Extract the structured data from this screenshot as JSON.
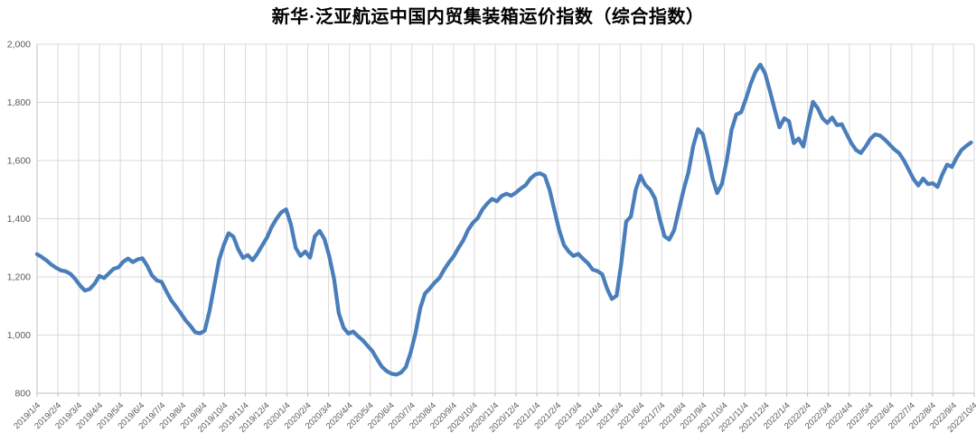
{
  "chart_data": {
    "type": "line",
    "title": "新华·泛亚航运中国内贸集装箱运价指数（综合指数）",
    "xlabel": "",
    "ylabel": "",
    "ylim": [
      800,
      2000
    ],
    "y_gridline_step": 200,
    "grid": "both",
    "legend": "none",
    "y_tick_labels": [
      "800",
      "1,000",
      "1,200",
      "1,400",
      "1,600",
      "1,800",
      "2,000"
    ],
    "x_tick_labels": [
      "2019/1/4",
      "2019/2/4",
      "2019/3/4",
      "2019/4/4",
      "2019/5/4",
      "2019/6/4",
      "2019/7/4",
      "2019/8/4",
      "2019/9/4",
      "2019/10/4",
      "2019/11/4",
      "2019/12/4",
      "2020/1/4",
      "2020/2/4",
      "2020/3/4",
      "2020/4/4",
      "2020/5/4",
      "2020/6/4",
      "2020/7/4",
      "2020/8/4",
      "2020/9/4",
      "2020/10/4",
      "2020/11/4",
      "2020/12/4",
      "2021/1/4",
      "2021/2/4",
      "2021/3/4",
      "2021/4/4",
      "2021/5/4",
      "2021/6/4",
      "2021/7/4",
      "2021/8/4",
      "2021/9/4",
      "2021/10/4",
      "2021/11/4",
      "2021/12/4",
      "2022/1/4",
      "2022/2/4",
      "2022/3/4",
      "2022/4/4",
      "2022/5/4",
      "2022/6/4",
      "2022/7/4",
      "2022/8/4",
      "2022/9/4",
      "2022/10/4"
    ],
    "series": [
      {
        "name": "综合指数",
        "frequency": "weekly",
        "start": "2019/1/4",
        "end": "2022/10",
        "values": [
          1278,
          1268,
          1256,
          1242,
          1231,
          1222,
          1219,
          1210,
          1192,
          1170,
          1153,
          1158,
          1176,
          1203,
          1196,
          1212,
          1228,
          1233,
          1252,
          1263,
          1251,
          1260,
          1264,
          1238,
          1205,
          1188,
          1183,
          1150,
          1120,
          1098,
          1075,
          1051,
          1032,
          1010,
          1006,
          1015,
          1082,
          1170,
          1258,
          1310,
          1350,
          1338,
          1295,
          1265,
          1275,
          1257,
          1280,
          1308,
          1335,
          1372,
          1400,
          1422,
          1432,
          1380,
          1300,
          1272,
          1287,
          1266,
          1340,
          1358,
          1330,
          1272,
          1194,
          1075,
          1025,
          1005,
          1012,
          996,
          982,
          963,
          945,
          917,
          891,
          876,
          867,
          864,
          871,
          890,
          940,
          1005,
          1092,
          1143,
          1160,
          1180,
          1196,
          1225,
          1250,
          1271,
          1300,
          1326,
          1362,
          1386,
          1402,
          1432,
          1452,
          1468,
          1460,
          1478,
          1486,
          1479,
          1490,
          1504,
          1515,
          1538,
          1552,
          1556,
          1548,
          1500,
          1430,
          1362,
          1310,
          1287,
          1272,
          1279,
          1262,
          1247,
          1225,
          1220,
          1209,
          1160,
          1124,
          1135,
          1250,
          1390,
          1408,
          1500,
          1548,
          1516,
          1500,
          1470,
          1400,
          1340,
          1328,
          1360,
          1430,
          1500,
          1560,
          1650,
          1708,
          1690,
          1620,
          1540,
          1488,
          1520,
          1600,
          1705,
          1758,
          1766,
          1812,
          1864,
          1905,
          1930,
          1900,
          1840,
          1776,
          1714,
          1745,
          1735,
          1660,
          1676,
          1648,
          1730,
          1802,
          1780,
          1745,
          1729,
          1748,
          1722,
          1725,
          1692,
          1660,
          1636,
          1626,
          1648,
          1675,
          1690,
          1686,
          1672,
          1655,
          1638,
          1625,
          1600,
          1568,
          1536,
          1514,
          1538,
          1519,
          1522,
          1509,
          1552,
          1586,
          1578,
          1610,
          1636,
          1650,
          1662
        ]
      }
    ],
    "colors": {
      "line": "#4A7EBB",
      "gridline": "#D9D9D9",
      "axis_line": "#BFBFBF",
      "tick_text": "#595959",
      "title_text": "#000000",
      "background": "#FFFFFF"
    }
  }
}
